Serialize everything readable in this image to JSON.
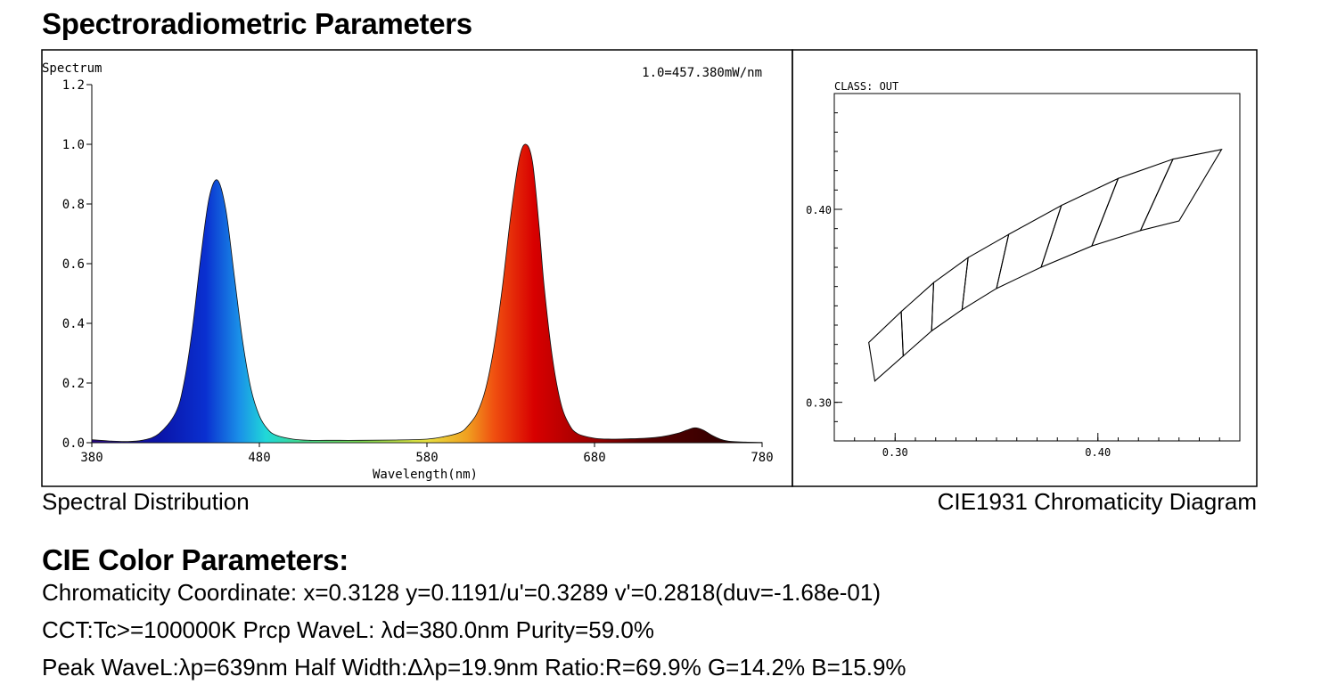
{
  "header": {
    "title": "Spectroradiometric Parameters"
  },
  "captions": {
    "left": "Spectral Distribution",
    "right": "CIE1931 Chromaticity Diagram"
  },
  "cie": {
    "heading": "CIE Color Parameters:",
    "lines": [
      "Chromaticity Coordinate: x=0.3128 y=0.1191/u'=0.3289 v'=0.2818(duv=-1.68e-01)",
      "CCT:Tc>=100000K Prcp WaveL: λd=380.0nm Purity=59.0%",
      "Peak WaveL:λp=639nm  Half Width:Δλp=19.9nm Ratio:R=69.9% G=14.2% B=15.9%"
    ]
  },
  "chart_data": [
    {
      "type": "area",
      "ylabel": "Spectrum",
      "xlabel": "Wavelength(nm)",
      "annotation": "1.0=457.380mW/nm",
      "xlim": [
        380,
        780
      ],
      "ylim": [
        0,
        1.2
      ],
      "xticks": [
        380,
        480,
        580,
        680,
        780
      ],
      "yticks": [
        0.0,
        0.2,
        0.4,
        0.6,
        0.8,
        1.0,
        1.2
      ],
      "ytick_labels": [
        "0.0",
        "0.2",
        "0.4",
        "0.6",
        "0.8",
        "1.0",
        "1.2"
      ],
      "xtick_labels": [
        "380",
        "480",
        "580",
        "680",
        "780"
      ],
      "x": [
        380,
        390,
        400,
        410,
        420,
        430,
        435,
        440,
        445,
        450,
        455,
        460,
        465,
        470,
        475,
        480,
        485,
        490,
        500,
        510,
        520,
        540,
        560,
        580,
        590,
        600,
        605,
        610,
        615,
        620,
        625,
        630,
        635,
        639,
        643,
        647,
        650,
        655,
        660,
        665,
        670,
        680,
        690,
        700,
        710,
        720,
        730,
        735,
        740,
        745,
        750,
        755,
        760,
        770,
        780
      ],
      "y": [
        0.01,
        0.006,
        0.004,
        0.008,
        0.03,
        0.1,
        0.2,
        0.38,
        0.62,
        0.82,
        0.88,
        0.78,
        0.56,
        0.34,
        0.18,
        0.09,
        0.045,
        0.025,
        0.012,
        0.008,
        0.008,
        0.008,
        0.009,
        0.012,
        0.02,
        0.035,
        0.06,
        0.1,
        0.18,
        0.32,
        0.52,
        0.76,
        0.95,
        1.0,
        0.94,
        0.72,
        0.52,
        0.28,
        0.13,
        0.06,
        0.03,
        0.015,
        0.012,
        0.013,
        0.015,
        0.02,
        0.032,
        0.042,
        0.05,
        0.042,
        0.025,
        0.012,
        0.005,
        0.002,
        0.001
      ],
      "colors": {
        "blue": "#0a1ab4",
        "cyan": "#20d8d8",
        "green": "#6cd66c",
        "yellow": "#e8e040",
        "orange": "#f07018",
        "red": "#cc0000",
        "darkred": "#3a0000"
      }
    },
    {
      "type": "line",
      "title": "CLASS: OUT",
      "xlim": [
        0.27,
        0.47
      ],
      "ylim": [
        0.28,
        0.46
      ],
      "xticks": [
        0.3,
        0.4
      ],
      "yticks": [
        0.3,
        0.4
      ],
      "xtick_labels": [
        "0.30",
        "0.40"
      ],
      "ytick_labels": [
        "0.30",
        "0.40"
      ],
      "bins": [
        {
          "top_left": [
            0.287,
            0.331
          ],
          "top_right": [
            0.303,
            0.347
          ],
          "bottom_right": [
            0.304,
            0.324
          ],
          "bottom_left": [
            0.29,
            0.311
          ]
        },
        {
          "top_left": [
            0.303,
            0.347
          ],
          "top_right": [
            0.319,
            0.362
          ],
          "bottom_right": [
            0.318,
            0.337
          ],
          "bottom_left": [
            0.304,
            0.324
          ]
        },
        {
          "top_left": [
            0.319,
            0.362
          ],
          "top_right": [
            0.336,
            0.375
          ],
          "bottom_right": [
            0.333,
            0.348
          ],
          "bottom_left": [
            0.318,
            0.337
          ]
        },
        {
          "top_left": [
            0.336,
            0.375
          ],
          "top_right": [
            0.356,
            0.387
          ],
          "bottom_right": [
            0.35,
            0.359
          ],
          "bottom_left": [
            0.333,
            0.348
          ]
        },
        {
          "top_left": [
            0.356,
            0.387
          ],
          "top_right": [
            0.382,
            0.402
          ],
          "bottom_right": [
            0.372,
            0.37
          ],
          "bottom_left": [
            0.35,
            0.359
          ]
        },
        {
          "top_left": [
            0.382,
            0.402
          ],
          "top_right": [
            0.41,
            0.416
          ],
          "bottom_right": [
            0.397,
            0.381
          ],
          "bottom_left": [
            0.372,
            0.37
          ]
        },
        {
          "top_left": [
            0.41,
            0.416
          ],
          "top_right": [
            0.437,
            0.426
          ],
          "bottom_right": [
            0.421,
            0.389
          ],
          "bottom_left": [
            0.397,
            0.381
          ]
        },
        {
          "top_left": [
            0.437,
            0.426
          ],
          "top_right": [
            0.461,
            0.431
          ],
          "bottom_right": [
            0.44,
            0.394
          ],
          "bottom_left": [
            0.421,
            0.389
          ]
        }
      ]
    }
  ]
}
